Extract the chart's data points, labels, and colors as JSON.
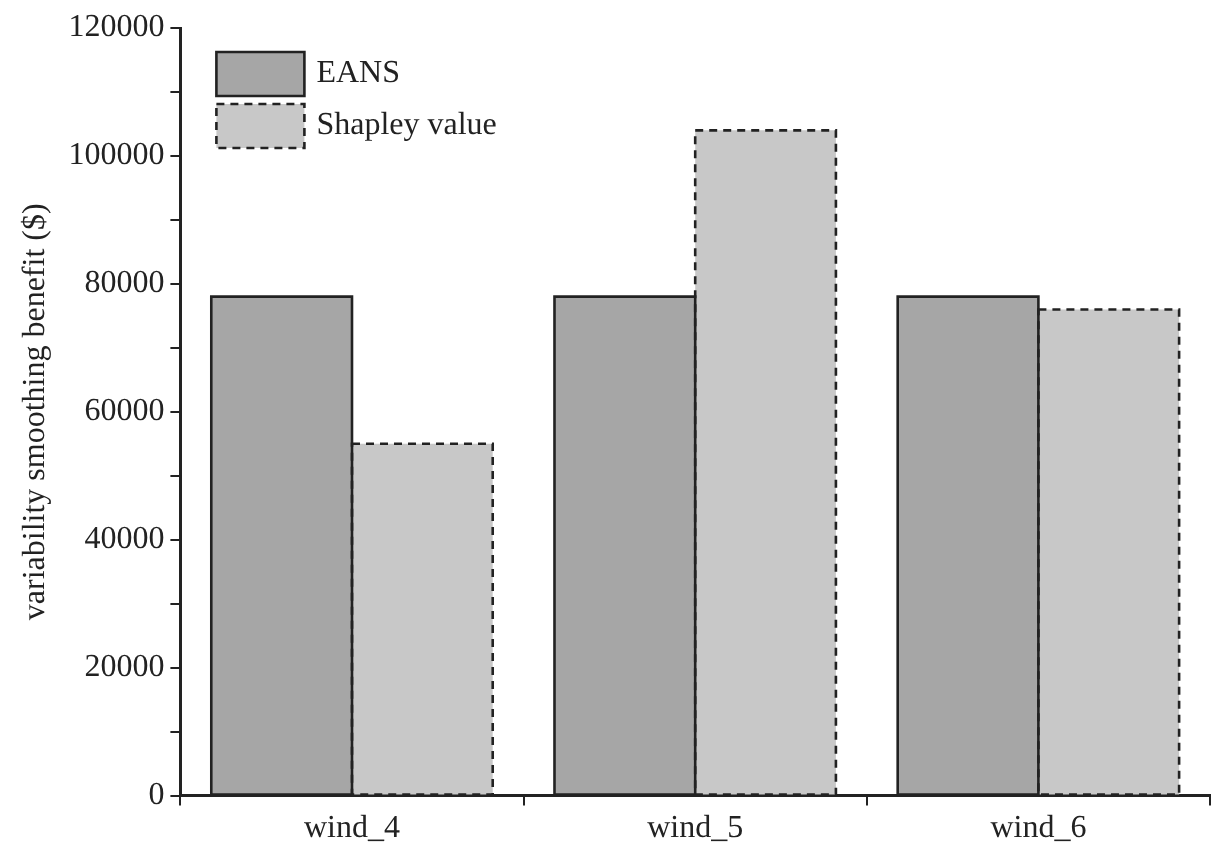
{
  "chart_data": {
    "type": "bar",
    "ylabel": "variability smoothing benefit ($)",
    "categories": [
      "wind_4",
      "wind_5",
      "wind_6"
    ],
    "series": [
      {
        "name": "EANS",
        "color": "#a6a6a6",
        "line_style": "solid",
        "values": [
          78000,
          78000,
          78000
        ]
      },
      {
        "name": "Shapley value",
        "color": "#c8c8c8",
        "line_style": "dashed",
        "values": [
          55000,
          104000,
          76000
        ]
      }
    ],
    "ylim": [
      0,
      120000
    ],
    "yticks": [
      0,
      {
        "value": 10000,
        "label": null
      },
      20000,
      {
        "value": 30000,
        "label": null
      },
      40000,
      {
        "value": 50000,
        "label": null
      },
      60000,
      {
        "value": 70000,
        "label": null
      },
      80000,
      {
        "value": 90000,
        "label": null
      },
      100000,
      {
        "value": 110000,
        "label": null
      },
      120000
    ],
    "grid": false,
    "legend": "top left"
  }
}
